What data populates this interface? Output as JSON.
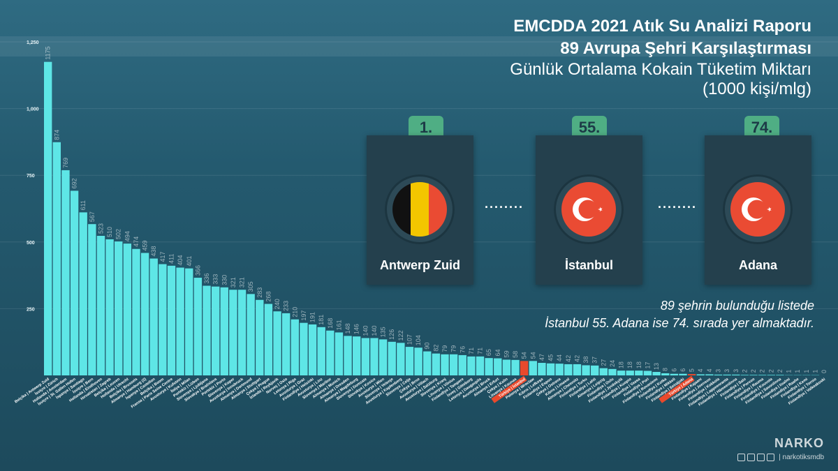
{
  "header": {
    "line1": "EMCDDA 2021 Atık Su Analizi Raporu",
    "line2": "89 Avrupa Şehri Karşılaştırması",
    "line3": "Günlük Ortalama Kokain Tüketim Miktarı",
    "line4": "(1000 kişi/mlg)"
  },
  "highlights": [
    {
      "rank": "1.",
      "city": "Antwerp Zuid",
      "flag": "belgium-flag"
    },
    {
      "rank": "55.",
      "city": "İstanbul",
      "flag": "turkey-flag"
    },
    {
      "rank": "74.",
      "city": "Adana",
      "flag": "turkey-flag"
    }
  ],
  "separators": [
    "........",
    "........"
  ],
  "note": {
    "line1": "89 şehrin bulunduğu listede",
    "line2": "İstanbul 55.  Adana ise 74. sırada yer almaktadır."
  },
  "brand": {
    "name": "NARKO",
    "handle": "| narkotiksmdb"
  },
  "colors": {
    "bar": "#5ee6e6",
    "highlight": "#e8492c",
    "accent": "#4fae84"
  },
  "chart_data": {
    "type": "bar",
    "ylim": [
      0,
      1250
    ],
    "yticks": [
      "1,250",
      "1,000",
      "750",
      "500",
      "250"
    ],
    "ytick_values": [
      1250,
      1000,
      750,
      500,
      250
    ],
    "highlight_indices": [
      54,
      73
    ],
    "categories": [
      "Belçika|Antwerp Zuid",
      "İsviçre|Zürich",
      "Hollanda|Amsterdam",
      "İsviçre|St. Gallen Hofen",
      "İspanya|Santiago",
      "İsviçre|Bern",
      "Hollanda|Eindhoven",
      "Hırvatistan|Zagreb",
      "Belçika|Leuven",
      "Hollanda|Utrecht",
      "Belçika|Brussels",
      "Almanya|Hamburg (2)",
      "İspanya|Castellon",
      "Belçika|Boom",
      "Fransa|Paris Seine Centre",
      "Avusturya|Kufstein",
      "İtalya|Milan",
      "Portekiz|Lizbon",
      "Slovenya|Ljubljana",
      "Slovakya|Bratislava",
      "Portekiz|Porto",
      "Slovenya|Koper",
      "Avusturya|Innsbruck",
      "Almanya|Dortmund",
      "Almanya|Stuttgart",
      "Çekya|Prague",
      "İzlanda|Reykjavik",
      "Norveç|Oslo",
      "Letonya|Riga",
      "Avusturya|Graz",
      "Finlandiya|Helsinki",
      "Avusturya|Linz",
      "Slovenya|Maribor",
      "Almanya|Munich",
      "Almanya|Dresden",
      "Almanya|Magdeburg",
      "Slovenya|Domzale",
      "Slovakya|Kosice",
      "Avusturya|Wien",
      "Slovenya|Velenje",
      "Avusturya|Kapfenberg",
      "Slovenya|Celje",
      "Çekya|Brno",
      "Avusturya|Villach",
      "Avusturya|Salzburg",
      "Slovenya|Kranj",
      "Litvanya|Vilnius",
      "Finlandiya|Tampere",
      "İsveç|Göteborg",
      "Letonya|Daugavpils",
      "Avusturya|Bruck",
      "Almanya|Erfurt",
      "Çekya|Kolin",
      "Litvanya|Kaunas",
      "Türkiye|İstanbul",
      "Polonya|Wroclaw",
      "Kıbrıs|Lefkoşa",
      "Finlandiya|Espoo",
      "Çekya|Ostrava",
      "Kıbrıs|Limasol",
      "Almanya|Chemnitz",
      "Finlandiya|Turku",
      "Finlandiya|Lahti",
      "Almanya|Leipzig",
      "Finlandiya|Oulu",
      "Finlandiya|Jyväskylä",
      "Finlandiya|Kuopio",
      "Finlandiya|Vaasa",
      "Finlandiya|Pori",
      "Finlandiya|Rovaniemi",
      "Finlandiya|Kotka",
      "Finlandiya|Mikkeli",
      "Finlandiya|Seinäjoki",
      "Türkiye|Adana",
      "Finlandiya|Kajaani",
      "Finlandiya|Joensuu",
      "Finlandiya|Kokkola",
      "Finlandiya|Lappeenranta",
      "Finlandiya|Hämeenlinna",
      "Finlandiya|Salo",
      "Finlandiya|Porvoo",
      "Finlandiya|Rauma",
      "Finlandiya|Kouvola",
      "Finlandiya|Savonlinna",
      "Finlandiya|Iisalmi",
      "Finlandiya|Raahe",
      "Finlandiya|Kemi",
      "Finlandiya|Tornio",
      "Finlandiya|Valkeakoski"
    ],
    "values": [
      1175,
      874,
      769,
      692,
      611,
      567,
      523,
      510,
      502,
      494,
      474,
      459,
      438,
      417,
      411,
      404,
      401,
      366,
      336,
      333,
      330,
      321,
      321,
      305,
      283,
      268,
      240,
      233,
      210,
      197,
      191,
      181,
      168,
      161,
      148,
      146,
      140,
      140,
      135,
      126,
      122,
      107,
      104,
      90,
      82,
      79,
      79,
      76,
      71,
      71,
      65,
      64,
      59,
      58,
      54,
      54,
      47,
      45,
      44,
      42,
      42,
      38,
      37,
      27,
      24,
      18,
      18,
      18,
      17,
      13,
      8,
      6,
      6,
      5,
      4,
      4,
      3,
      3,
      3,
      2,
      2,
      2,
      2,
      2,
      1,
      1,
      1,
      1,
      0
    ]
  }
}
